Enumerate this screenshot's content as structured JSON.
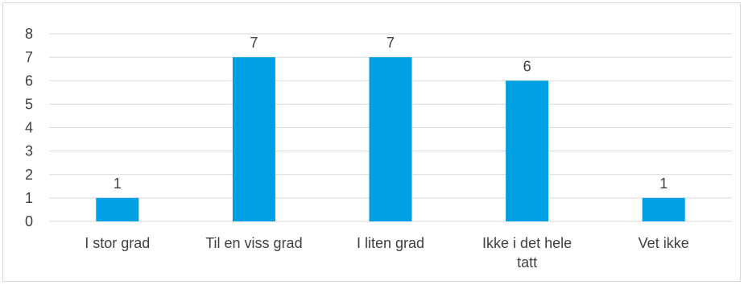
{
  "chart_data": {
    "type": "bar",
    "categories": [
      [
        "I stor grad"
      ],
      [
        "Til en viss grad"
      ],
      [
        "I liten grad"
      ],
      [
        "Ikke i det hele",
        "tatt"
      ],
      [
        "Vet ikke"
      ]
    ],
    "values": [
      1,
      7,
      7,
      6,
      1
    ],
    "data_labels": [
      "1",
      "7",
      "7",
      "6",
      "1"
    ],
    "ylim": [
      0,
      8
    ],
    "y_ticks": [
      0,
      1,
      2,
      3,
      4,
      5,
      6,
      7,
      8
    ],
    "grid": true,
    "legend": "none",
    "colors": {
      "bar": "#009fe3",
      "grid": "#d9d9d9",
      "text": "#404040"
    }
  }
}
